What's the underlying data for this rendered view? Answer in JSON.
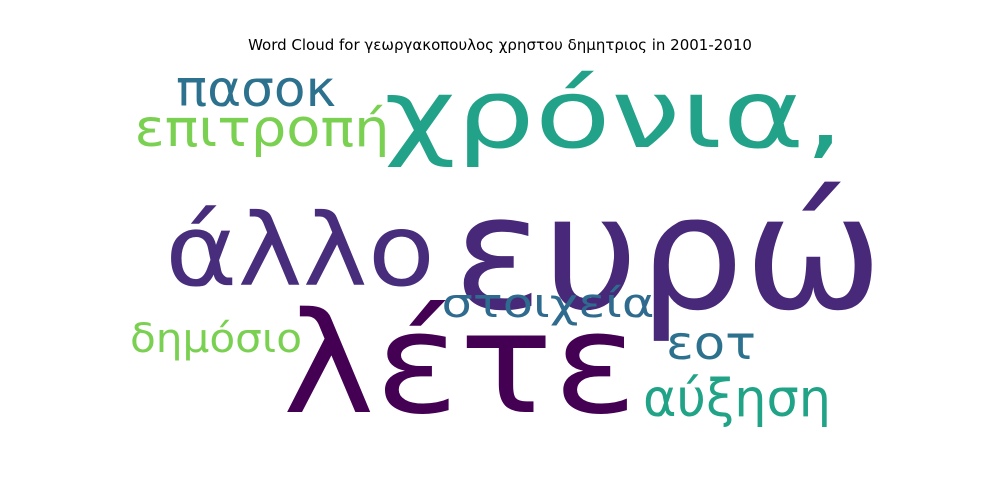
{
  "chart_data": {
    "type": "wordcloud",
    "title": "Word Cloud for γεωργακοπουλος χρηστου δημητριος in 2001-2010",
    "words": [
      {
        "text": "ευρώ",
        "weight": 1.0,
        "color": "#482878"
      },
      {
        "text": "λέτε",
        "weight": 0.92,
        "color": "#440154"
      },
      {
        "text": "χρόνια,",
        "weight": 0.78,
        "color": "#22a288"
      },
      {
        "text": "άλλο",
        "weight": 0.62,
        "color": "#472d7b"
      },
      {
        "text": "επιτροπή",
        "weight": 0.32,
        "color": "#7ad151"
      },
      {
        "text": "πασοκ",
        "weight": 0.31,
        "color": "#2c718e"
      },
      {
        "text": "στοιχεία",
        "weight": 0.28,
        "color": "#2f6b8e"
      },
      {
        "text": "εοτ",
        "weight": 0.27,
        "color": "#2c728e"
      },
      {
        "text": "αύξηση",
        "weight": 0.27,
        "color": "#20a386"
      },
      {
        "text": "δημόσιο",
        "weight": 0.26,
        "color": "#7ad151"
      }
    ]
  }
}
